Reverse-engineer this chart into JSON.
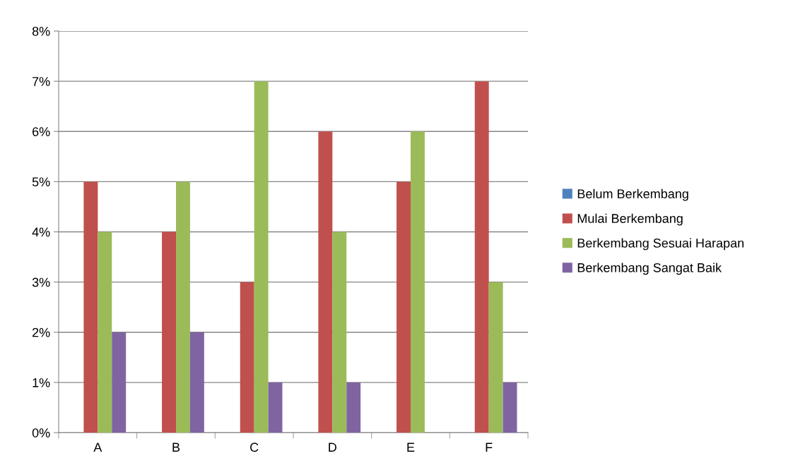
{
  "chart_data": {
    "type": "bar",
    "categories": [
      "A",
      "B",
      "C",
      "D",
      "E",
      "F"
    ],
    "series": [
      {
        "name": "Belum Berkembang",
        "color": "#4f81bd",
        "values": [
          0,
          0,
          0,
          0,
          0,
          0
        ]
      },
      {
        "name": "Mulai Berkembang",
        "color": "#c0504d",
        "values": [
          5,
          4,
          3,
          6,
          5,
          7
        ]
      },
      {
        "name": "Berkembang Sesuai Harapan",
        "color": "#9bbb59",
        "values": [
          4,
          5,
          7,
          4,
          6,
          3
        ]
      },
      {
        "name": "Berkembang Sangat Baik",
        "color": "#8064a2",
        "values": [
          2,
          2,
          1,
          1,
          0,
          1
        ]
      }
    ],
    "ylim": [
      0,
      8
    ],
    "yticks": [
      {
        "value": 0,
        "label": "0%"
      },
      {
        "value": 1,
        "label": "1%"
      },
      {
        "value": 2,
        "label": "2%"
      },
      {
        "value": 3,
        "label": "3%"
      },
      {
        "value": 4,
        "label": "4%"
      },
      {
        "value": 5,
        "label": "5%"
      },
      {
        "value": 6,
        "label": "6%"
      },
      {
        "value": 7,
        "label": "7%"
      },
      {
        "value": 8,
        "label": "8%"
      }
    ],
    "grid": "y",
    "legend": "right"
  }
}
